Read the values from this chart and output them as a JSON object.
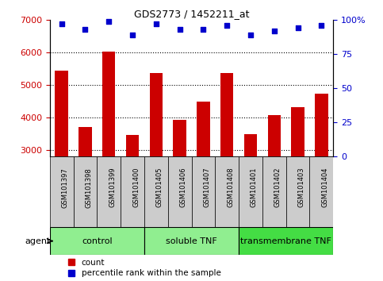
{
  "title": "GDS2773 / 1452211_at",
  "samples": [
    "GSM101397",
    "GSM101398",
    "GSM101399",
    "GSM101400",
    "GSM101405",
    "GSM101406",
    "GSM101407",
    "GSM101408",
    "GSM101401",
    "GSM101402",
    "GSM101403",
    "GSM101404"
  ],
  "counts": [
    5450,
    3700,
    6020,
    3460,
    5370,
    3920,
    4500,
    5360,
    3490,
    4070,
    4330,
    4740
  ],
  "percentiles": [
    97,
    93,
    99,
    89,
    97,
    93,
    93,
    96,
    89,
    92,
    94,
    96
  ],
  "groups": [
    {
      "label": "control",
      "start": 0,
      "end": 4,
      "color": "#90EE90"
    },
    {
      "label": "soluble TNF",
      "start": 4,
      "end": 8,
      "color": "#90EE90"
    },
    {
      "label": "transmembrane TNF",
      "start": 8,
      "end": 12,
      "color": "#44DD44"
    }
  ],
  "bar_color": "#CC0000",
  "dot_color": "#0000CC",
  "ylim_left": [
    2800,
    7000
  ],
  "ylim_right": [
    0,
    100
  ],
  "yticks_left": [
    3000,
    4000,
    5000,
    6000,
    7000
  ],
  "yticks_right": [
    0,
    25,
    50,
    75,
    100
  ],
  "tick_label_color_left": "#CC0000",
  "tick_label_color_right": "#0000CC",
  "bar_bottom": 2800,
  "xlabel_area_color": "#d0d0d0",
  "legend_labels": [
    "count",
    "percentile rank within the sample"
  ]
}
